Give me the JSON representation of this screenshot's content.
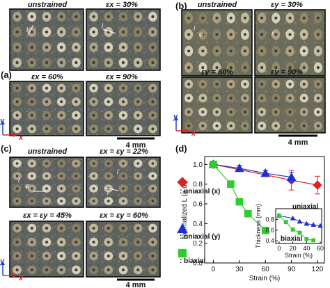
{
  "panels": {
    "a": {
      "label": "(a)",
      "images": [
        {
          "header": "unstrained",
          "annotations": [
            "l"
          ]
        },
        {
          "header": "εx = 30%",
          "annotations": [
            "l"
          ]
        },
        {
          "header": "εx = 60%",
          "annotations": []
        },
        {
          "header": "εx = 90%",
          "annotations": []
        }
      ],
      "axes": {
        "y": "y",
        "x": "x"
      },
      "scale_bar": "4 mm"
    },
    "b": {
      "label": "(b)",
      "images": [
        {
          "header": "unstrained",
          "annotations": [
            "l",
            "φ"
          ]
        },
        {
          "header": "εy = 30%",
          "annotations": [
            "l"
          ]
        },
        {
          "header": "εy = 60%",
          "annotations": []
        },
        {
          "header": "εy = 90%",
          "annotations": []
        }
      ],
      "axes": {
        "y": "y",
        "x": "x"
      },
      "scale_bar": "4 mm"
    },
    "c": {
      "label": "(c)",
      "images": [
        {
          "header": "unstrained",
          "annotations": [
            "l",
            "φ"
          ]
        },
        {
          "header": "εx = εy = 22%",
          "annotations": [
            "l",
            "l"
          ]
        },
        {
          "header": "εx = εy = 45%",
          "annotations": []
        },
        {
          "header": "εx = εy = 60%",
          "annotations": []
        }
      ],
      "axes": {
        "y": "y",
        "x": "x"
      },
      "scale_bar": "4 mm"
    },
    "d": {
      "label": "(d)"
    }
  },
  "colors": {
    "uniaxial_x": "#e02020",
    "uniaxial_y": "#2030d0",
    "biaxial": "#2ecc2e",
    "photo_bg": "#5e6360",
    "axis_x": "#e02020",
    "axis_y": "#2040d0"
  },
  "chart_data": {
    "type": "line",
    "xlabel": "Strain (%)",
    "ylabel": "Normalized L (a.u.)",
    "xlim": [
      -10,
      128
    ],
    "ylim": [
      0,
      1.08
    ],
    "xticks": [
      "0",
      "30",
      "60",
      "90",
      "120"
    ],
    "yticks": [
      "0.0",
      "0.2",
      "0.4",
      "0.6",
      "0.8",
      "1.0"
    ],
    "series": [
      {
        "name": ": uniaxial (x)",
        "marker": "diamond",
        "color": "#e02020",
        "x": [
          0,
          90,
          120
        ],
        "y": [
          1.0,
          0.84,
          0.79
        ],
        "err": [
          0.0,
          0.1,
          0.09
        ]
      },
      {
        "name": ": uniaxial (y)",
        "marker": "triangle",
        "color": "#2030d0",
        "x": [
          0,
          30,
          60,
          90
        ],
        "y": [
          1.0,
          0.96,
          0.91,
          0.87
        ],
        "err": [
          0.0,
          0.03,
          0.03,
          0.05
        ]
      },
      {
        "name": ": biaxial",
        "marker": "square",
        "color": "#2ecc2e",
        "x": [
          0,
          20,
          30,
          40,
          60
        ],
        "y": [
          1.0,
          0.8,
          0.62,
          0.5,
          0.33
        ],
        "err": [
          0.0,
          0.0,
          0.0,
          0.0,
          0.0
        ]
      }
    ],
    "inset": {
      "xlabel": "Strain (%)",
      "ylabel": "Thickness (mm)",
      "xlim": [
        -5,
        62
      ],
      "ylim": [
        0.35,
        1.0
      ],
      "xticks": [
        "0",
        "20",
        "40",
        "60"
      ],
      "yticks": [
        "0.4",
        "0.6",
        "0.8"
      ],
      "labels": [
        "uniaxial",
        "biaxial"
      ],
      "series": [
        {
          "name": "uniaxial",
          "marker": "triangle",
          "color": "#2030d0",
          "x": [
            0,
            20,
            30,
            40,
            50,
            60
          ],
          "y": [
            0.87,
            0.82,
            0.76,
            0.72,
            0.7,
            0.68
          ]
        },
        {
          "name": "biaxial",
          "marker": "square",
          "color": "#2ecc2e",
          "x": [
            0,
            10,
            20,
            30,
            40,
            50
          ],
          "y": [
            0.87,
            0.75,
            0.61,
            0.55,
            0.43,
            0.41
          ]
        }
      ]
    }
  }
}
